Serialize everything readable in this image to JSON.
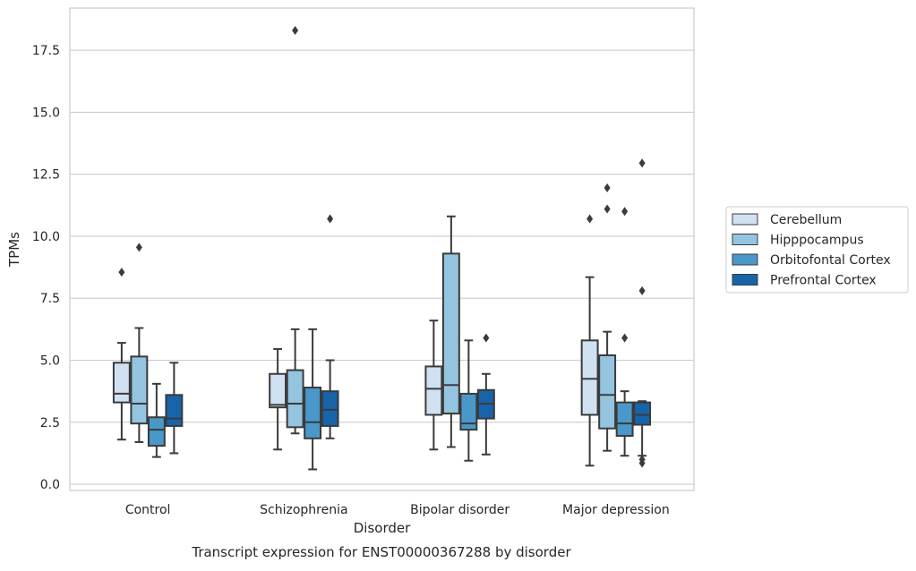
{
  "caption": "Transcript expression for ENST00000367288 by disorder",
  "colors": {
    "Cerebellum": "#d0e1f2",
    "Hipppocampus": "#94c4df",
    "Orbitofontal Cortex": "#4a98c9",
    "Prefrontal Cortex": "#1764ab",
    "edge": "#3b3b3b",
    "grid": "#cccccc"
  },
  "chart_data": {
    "type": "boxplot",
    "title": "",
    "xlabel": "Disorder",
    "ylabel": "TPMs",
    "categories": [
      "Control",
      "Schizophrenia",
      "Bipolar disorder",
      "Major depression"
    ],
    "ylim": [
      -0.25,
      19.2
    ],
    "yticks": [
      0.0,
      2.5,
      5.0,
      7.5,
      10.0,
      12.5,
      15.0,
      17.5
    ],
    "ytick_labels": [
      "0.0",
      "2.5",
      "5.0",
      "7.5",
      "10.0",
      "12.5",
      "15.0",
      "17.5"
    ],
    "grid": true,
    "legend_position": "right",
    "series": [
      {
        "name": "Cerebellum",
        "boxes": [
          {
            "whislo": 1.8,
            "q1": 3.3,
            "med": 3.65,
            "q3": 4.9,
            "whishi": 5.7,
            "fliers": [
              8.55
            ]
          },
          {
            "whislo": 1.4,
            "q1": 3.1,
            "med": 3.2,
            "q3": 4.45,
            "whishi": 5.45,
            "fliers": []
          },
          {
            "whislo": 1.4,
            "q1": 2.8,
            "med": 3.85,
            "q3": 4.75,
            "whishi": 6.6,
            "fliers": []
          },
          {
            "whislo": 0.75,
            "q1": 2.8,
            "med": 4.25,
            "q3": 5.8,
            "whishi": 8.35,
            "fliers": [
              10.7
            ]
          }
        ]
      },
      {
        "name": "Hipppocampus",
        "boxes": [
          {
            "whislo": 1.7,
            "q1": 2.45,
            "med": 3.25,
            "q3": 5.15,
            "whishi": 6.3,
            "fliers": [
              9.55
            ]
          },
          {
            "whislo": 2.05,
            "q1": 2.3,
            "med": 3.25,
            "q3": 4.6,
            "whishi": 6.25,
            "fliers": [
              18.3
            ]
          },
          {
            "whislo": 1.5,
            "q1": 2.85,
            "med": 4.0,
            "q3": 9.3,
            "whishi": 10.8,
            "fliers": []
          },
          {
            "whislo": 1.35,
            "q1": 2.25,
            "med": 3.6,
            "q3": 5.2,
            "whishi": 6.15,
            "fliers": [
              11.95,
              11.1
            ]
          }
        ]
      },
      {
        "name": "Orbitofontal Cortex",
        "boxes": [
          {
            "whislo": 1.1,
            "q1": 1.55,
            "med": 2.2,
            "q3": 2.7,
            "whishi": 4.05,
            "fliers": []
          },
          {
            "whislo": 0.6,
            "q1": 1.85,
            "med": 2.5,
            "q3": 3.9,
            "whishi": 6.25,
            "fliers": []
          },
          {
            "whislo": 0.95,
            "q1": 2.2,
            "med": 2.45,
            "q3": 3.65,
            "whishi": 5.8,
            "fliers": []
          },
          {
            "whislo": 1.15,
            "q1": 1.95,
            "med": 2.45,
            "q3": 3.3,
            "whishi": 3.75,
            "fliers": [
              5.9,
              11.0
            ]
          }
        ]
      },
      {
        "name": "Prefrontal Cortex",
        "boxes": [
          {
            "whislo": 1.25,
            "q1": 2.35,
            "med": 2.65,
            "q3": 3.6,
            "whishi": 4.9,
            "fliers": []
          },
          {
            "whislo": 1.85,
            "q1": 2.35,
            "med": 3.0,
            "q3": 3.75,
            "whishi": 5.0,
            "fliers": [
              10.7
            ]
          },
          {
            "whislo": 1.2,
            "q1": 2.65,
            "med": 3.25,
            "q3": 3.8,
            "whishi": 4.45,
            "fliers": [
              5.9
            ]
          },
          {
            "whislo": 1.15,
            "q1": 2.4,
            "med": 2.8,
            "q3": 3.3,
            "whishi": 3.35,
            "fliers": [
              12.95,
              7.8,
              1.0,
              0.85
            ]
          }
        ]
      }
    ]
  }
}
